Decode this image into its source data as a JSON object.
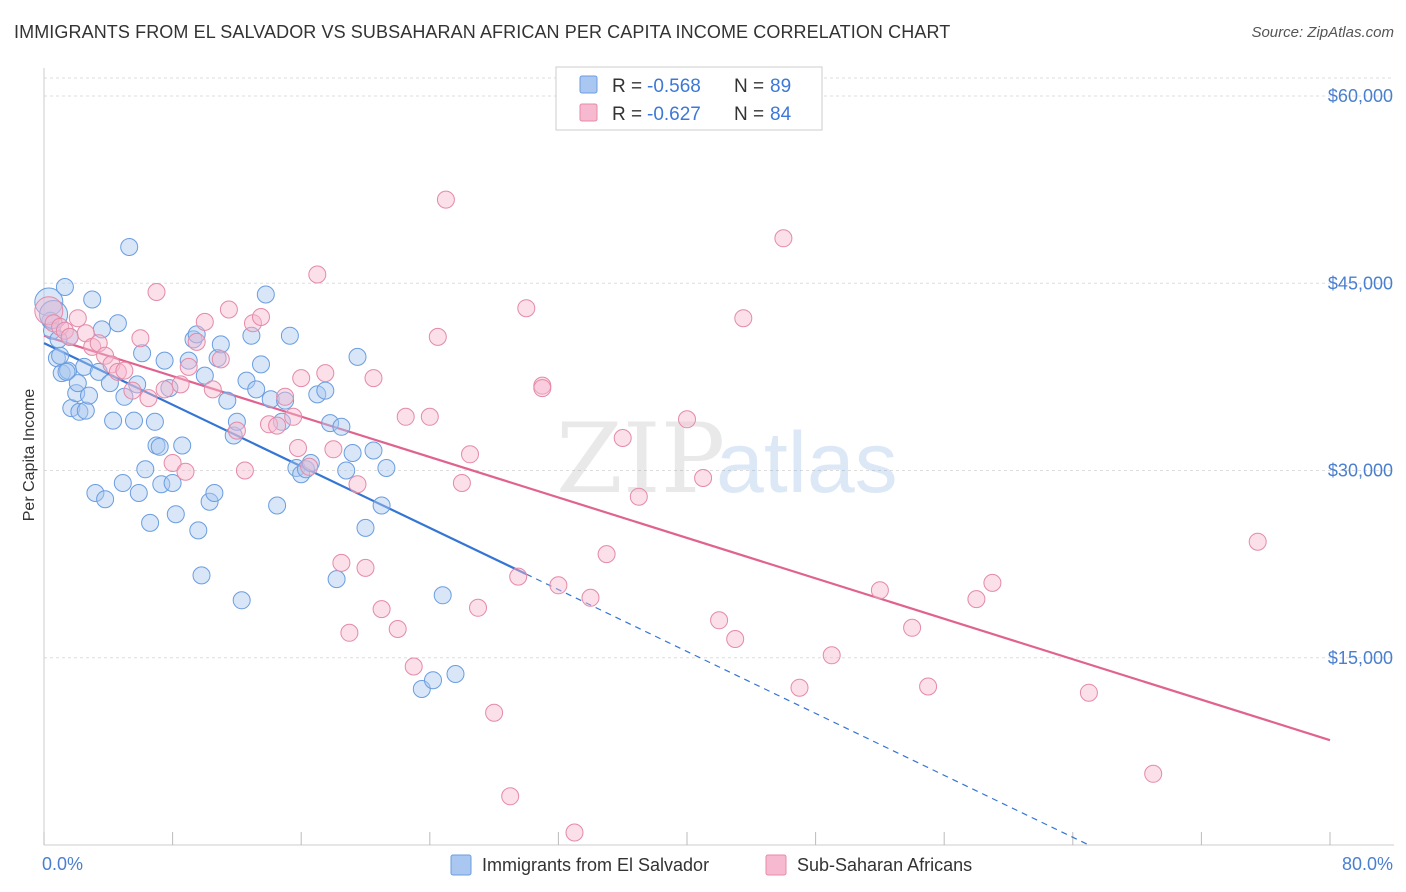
{
  "header": {
    "title": "IMMIGRANTS FROM EL SALVADOR VS SUBSAHARAN AFRICAN PER CAPITA INCOME CORRELATION CHART",
    "source": "Source: ZipAtlas.com"
  },
  "watermark": {
    "zip": "ZIP",
    "atlas": "atlas"
  },
  "legend_top": [
    {
      "r_label": "R =",
      "r_value": "-0.568",
      "n_label": "N =",
      "n_value": "89",
      "color": "#a9c7f0",
      "stroke": "#6a9de0"
    },
    {
      "r_label": "R =",
      "r_value": "-0.627",
      "n_label": "N =",
      "n_value": "84",
      "color": "#f7b9cf",
      "stroke": "#e48aa8"
    }
  ],
  "legend_bottom": [
    {
      "label": "Immigrants from El Salvador",
      "color": "#a9c7f0",
      "stroke": "#6a9de0"
    },
    {
      "label": "Sub-Saharan Africans",
      "color": "#f7b9cf",
      "stroke": "#e48aa8"
    }
  ],
  "chart_data": {
    "type": "scatter",
    "title": "IMMIGRANTS FROM EL SALVADOR VS SUBSAHARAN AFRICAN PER CAPITA INCOME CORRELATION CHART",
    "xlabel": "",
    "ylabel": "Per Capita Income",
    "xlim": [
      0,
      80
    ],
    "ylim": [
      0,
      60000
    ],
    "x_tick_labels": [
      "0.0%",
      "80.0%"
    ],
    "y_ticks": [
      15000,
      30000,
      45000,
      60000
    ],
    "y_tick_labels": [
      "$15,000",
      "$30,000",
      "$45,000",
      "$60,000"
    ],
    "grid": true,
    "legend_position": "top-center",
    "series": [
      {
        "name": "Immigrants from El Salvador",
        "color": "#a9c7f0",
        "stroke": "#6a9de0",
        "line_color": "#3575d3",
        "trend": {
          "x1": 0,
          "y1": 40200,
          "x2": 30,
          "y2": 21700,
          "dash_to_x": 65,
          "dash_to_y": 0
        },
        "points": [
          [
            0.3,
            43500
          ],
          [
            0.4,
            42000
          ],
          [
            0.5,
            41200
          ],
          [
            0.8,
            39000
          ],
          [
            1.0,
            39200
          ],
          [
            1.1,
            37800
          ],
          [
            1.3,
            44700
          ],
          [
            1.5,
            38000
          ],
          [
            1.6,
            40700
          ],
          [
            1.7,
            35000
          ],
          [
            2.0,
            36200
          ],
          [
            2.1,
            37000
          ],
          [
            2.2,
            34700
          ],
          [
            2.5,
            38300
          ],
          [
            2.6,
            34800
          ],
          [
            3.0,
            43700
          ],
          [
            3.2,
            28200
          ],
          [
            3.4,
            37900
          ],
          [
            3.6,
            41300
          ],
          [
            3.8,
            27700
          ],
          [
            4.1,
            37000
          ],
          [
            4.3,
            34000
          ],
          [
            4.6,
            41800
          ],
          [
            4.9,
            29000
          ],
          [
            5.0,
            35900
          ],
          [
            5.3,
            47900
          ],
          [
            5.6,
            34000
          ],
          [
            5.9,
            28200
          ],
          [
            6.1,
            39400
          ],
          [
            6.3,
            30100
          ],
          [
            6.6,
            25800
          ],
          [
            6.9,
            33900
          ],
          [
            7.0,
            32000
          ],
          [
            7.3,
            28900
          ],
          [
            7.5,
            38800
          ],
          [
            7.8,
            36600
          ],
          [
            8.0,
            29000
          ],
          [
            8.2,
            26500
          ],
          [
            8.6,
            32000
          ],
          [
            9.0,
            38800
          ],
          [
            9.3,
            40500
          ],
          [
            9.6,
            25200
          ],
          [
            9.8,
            21600
          ],
          [
            10.0,
            37600
          ],
          [
            10.3,
            27500
          ],
          [
            10.6,
            28200
          ],
          [
            10.8,
            39000
          ],
          [
            11.0,
            40100
          ],
          [
            11.4,
            35600
          ],
          [
            11.8,
            32800
          ],
          [
            12.0,
            33900
          ],
          [
            12.3,
            19600
          ],
          [
            12.6,
            37200
          ],
          [
            12.9,
            40800
          ],
          [
            13.2,
            36500
          ],
          [
            13.5,
            38500
          ],
          [
            13.8,
            44100
          ],
          [
            14.1,
            35700
          ],
          [
            14.5,
            27200
          ],
          [
            14.8,
            33900
          ],
          [
            15.0,
            35600
          ],
          [
            15.3,
            40800
          ],
          [
            15.7,
            30200
          ],
          [
            16.0,
            29700
          ],
          [
            16.3,
            30100
          ],
          [
            16.6,
            30600
          ],
          [
            17.0,
            36100
          ],
          [
            17.5,
            36400
          ],
          [
            17.8,
            33800
          ],
          [
            18.2,
            21300
          ],
          [
            18.8,
            30000
          ],
          [
            19.2,
            31400
          ],
          [
            19.5,
            39100
          ],
          [
            20.0,
            25400
          ],
          [
            20.5,
            31600
          ],
          [
            21.0,
            27200
          ],
          [
            21.3,
            30200
          ],
          [
            23.5,
            12500
          ],
          [
            24.2,
            13200
          ],
          [
            24.8,
            20000
          ],
          [
            25.6,
            13700
          ],
          [
            0.6,
            42500
          ],
          [
            0.9,
            40500
          ],
          [
            1.4,
            37900
          ],
          [
            2.8,
            36000
          ],
          [
            5.8,
            36900
          ],
          [
            7.2,
            31900
          ],
          [
            9.5,
            40900
          ],
          [
            18.5,
            33500
          ]
        ]
      },
      {
        "name": "Sub-Saharan Africans",
        "color": "#f7b9cf",
        "stroke": "#e48aa8",
        "line_color": "#e0638f",
        "trend": {
          "x1": 0,
          "y1": 40800,
          "x2": 80,
          "y2": 8400
        },
        "points": [
          [
            0.3,
            42800
          ],
          [
            0.6,
            41800
          ],
          [
            1.0,
            41500
          ],
          [
            1.3,
            41200
          ],
          [
            1.6,
            40700
          ],
          [
            2.1,
            42200
          ],
          [
            2.6,
            41000
          ],
          [
            3.0,
            39900
          ],
          [
            3.4,
            40200
          ],
          [
            3.8,
            39200
          ],
          [
            4.2,
            38500
          ],
          [
            4.6,
            37900
          ],
          [
            5.0,
            38000
          ],
          [
            5.5,
            36400
          ],
          [
            6.0,
            40600
          ],
          [
            6.5,
            35800
          ],
          [
            7.0,
            44300
          ],
          [
            7.5,
            36500
          ],
          [
            8.0,
            30600
          ],
          [
            8.5,
            36900
          ],
          [
            9.0,
            38300
          ],
          [
            9.5,
            40300
          ],
          [
            10.0,
            41900
          ],
          [
            10.5,
            36500
          ],
          [
            11.0,
            38900
          ],
          [
            11.5,
            42900
          ],
          [
            12.0,
            33200
          ],
          [
            12.5,
            30000
          ],
          [
            13.0,
            41800
          ],
          [
            13.5,
            42300
          ],
          [
            14.0,
            33700
          ],
          [
            14.5,
            33600
          ],
          [
            15.0,
            35900
          ],
          [
            15.5,
            34300
          ],
          [
            16.0,
            37400
          ],
          [
            16.5,
            30300
          ],
          [
            17.0,
            45700
          ],
          [
            17.5,
            37800
          ],
          [
            18.0,
            31700
          ],
          [
            18.5,
            22600
          ],
          [
            19.0,
            17000
          ],
          [
            19.5,
            28900
          ],
          [
            20.0,
            22200
          ],
          [
            21.0,
            18900
          ],
          [
            22.0,
            17300
          ],
          [
            23.0,
            14300
          ],
          [
            24.0,
            34300
          ],
          [
            25.0,
            51700
          ],
          [
            26.0,
            29000
          ],
          [
            27.0,
            19000
          ],
          [
            28.0,
            10600
          ],
          [
            29.0,
            3900
          ],
          [
            30.0,
            43000
          ],
          [
            31.0,
            36800
          ],
          [
            32.0,
            20800
          ],
          [
            33.0,
            1000
          ],
          [
            34.0,
            19800
          ],
          [
            35.0,
            23300
          ],
          [
            36.0,
            32600
          ],
          [
            37.0,
            27900
          ],
          [
            40.0,
            34100
          ],
          [
            41.0,
            29400
          ],
          [
            42.0,
            18000
          ],
          [
            43.0,
            16500
          ],
          [
            43.5,
            42200
          ],
          [
            46.0,
            48600
          ],
          [
            47.0,
            12600
          ],
          [
            49.0,
            15200
          ],
          [
            52.0,
            20400
          ],
          [
            54.0,
            17400
          ],
          [
            55.0,
            12700
          ],
          [
            58.0,
            19700
          ],
          [
            59.0,
            21000
          ],
          [
            65.0,
            12200
          ],
          [
            69.0,
            5700
          ],
          [
            75.5,
            24300
          ],
          [
            31.0,
            36600
          ],
          [
            20.5,
            37400
          ],
          [
            22.5,
            34300
          ],
          [
            26.5,
            31300
          ],
          [
            8.8,
            29900
          ],
          [
            15.8,
            31800
          ],
          [
            29.5,
            21500
          ],
          [
            24.5,
            40700
          ]
        ]
      }
    ]
  }
}
